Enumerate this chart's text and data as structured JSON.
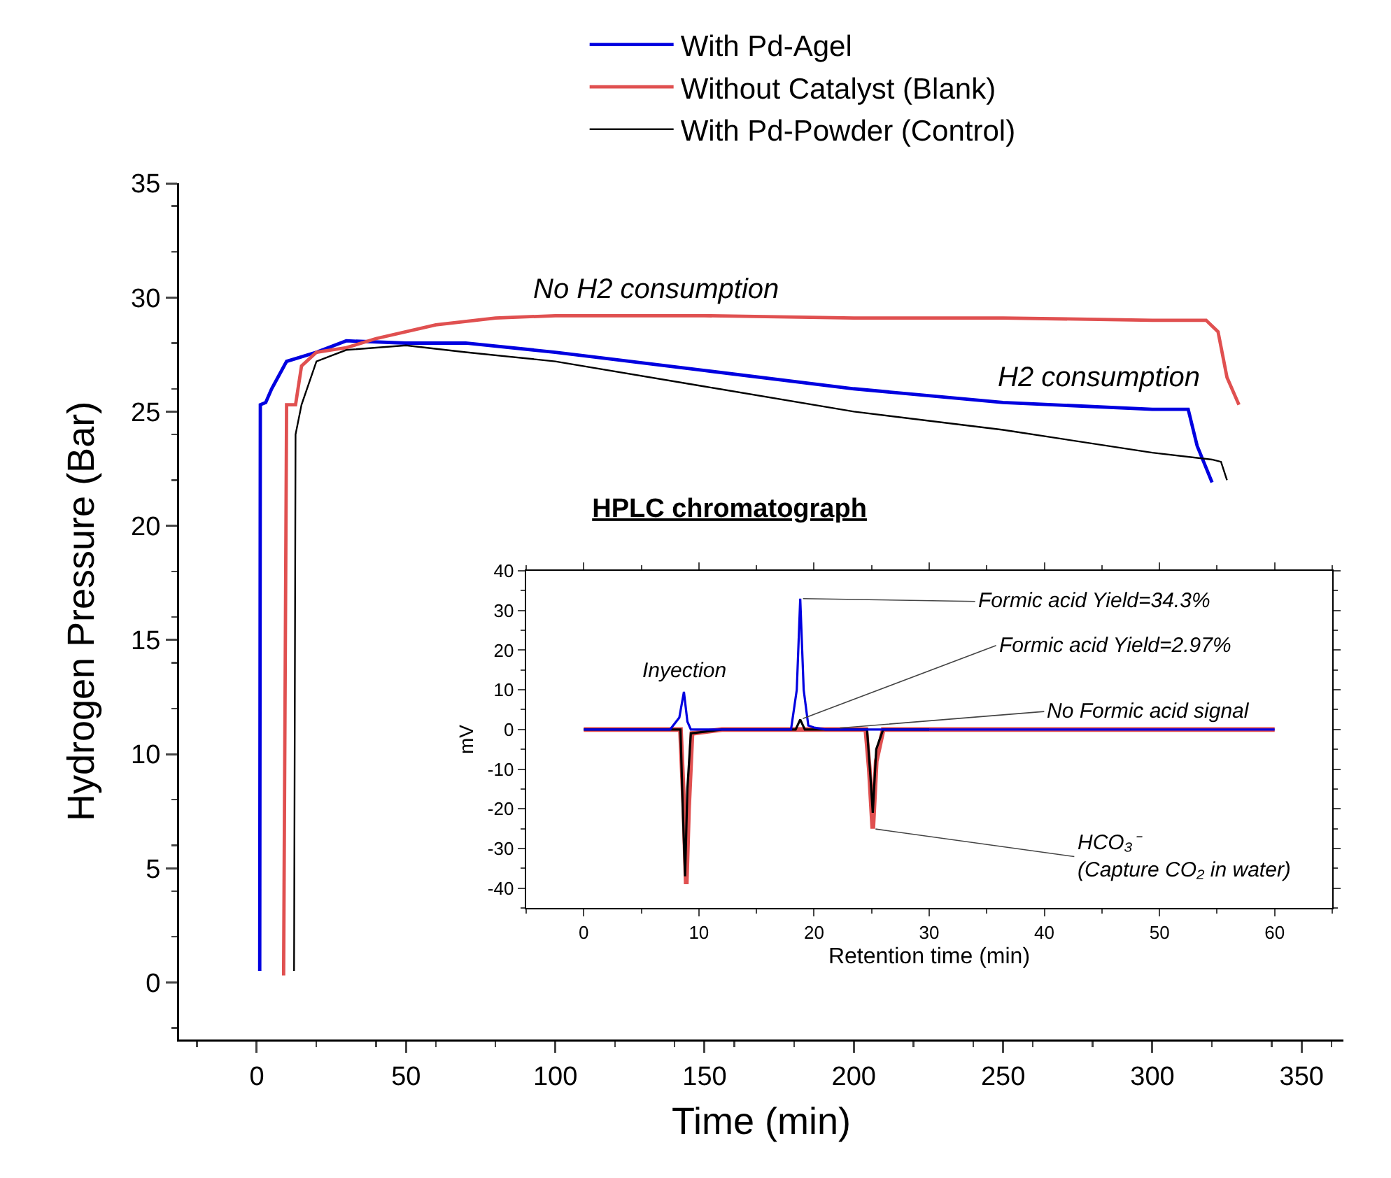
{
  "chart_data": [
    {
      "type": "line",
      "xlabel": "Time (min)",
      "ylabel": "Hydrogen Pressure (Bar)",
      "xlim": [
        -26,
        364
      ],
      "ylim": [
        -2.5,
        35
      ],
      "xticks": [
        0,
        50,
        100,
        150,
        200,
        250,
        300,
        350
      ],
      "yticks": [
        0,
        5,
        10,
        15,
        20,
        25,
        30,
        35
      ],
      "legend": "top",
      "series": [
        {
          "name": "With Pd-Agel",
          "color": "#0000e0",
          "x": [
            1,
            1.2,
            3,
            5,
            10,
            20,
            30,
            50,
            70,
            100,
            150,
            200,
            250,
            300,
            312,
            315,
            320
          ],
          "values": [
            0.5,
            25.3,
            25.4,
            26,
            27.2,
            27.6,
            28.1,
            28,
            28,
            27.6,
            26.8,
            26,
            25.4,
            25.1,
            25.1,
            23.5,
            21.9
          ]
        },
        {
          "name": "Without Catalyst (Blank)",
          "color": "#e05050",
          "x": [
            9,
            10,
            13,
            15,
            20,
            30,
            40,
            60,
            80,
            100,
            150,
            200,
            250,
            300,
            318,
            322,
            325,
            329
          ],
          "values": [
            0.3,
            25.3,
            25.3,
            27,
            27.6,
            27.8,
            28.2,
            28.8,
            29.1,
            29.2,
            29.2,
            29.1,
            29.1,
            29,
            29,
            28.5,
            26.5,
            25.3
          ]
        },
        {
          "name": "With Pd-Powder (Control)",
          "color": "#000000",
          "x": [
            12.5,
            13,
            15,
            20,
            30,
            50,
            70,
            100,
            150,
            200,
            250,
            300,
            320,
            323,
            325
          ],
          "values": [
            0.5,
            24,
            25.3,
            27.2,
            27.7,
            27.9,
            27.6,
            27.2,
            26.1,
            25,
            24.2,
            23.2,
            22.9,
            22.8,
            22
          ]
        }
      ],
      "annotations": [
        {
          "text": "No H2 consumption",
          "x": 134,
          "y": 29.2
        },
        {
          "text": "H2 consumption",
          "x": 282,
          "y": 25.3
        }
      ]
    },
    {
      "type": "line",
      "title": "HPLC chromatograph",
      "xlabel": "Retention time (min)",
      "ylabel": "mV",
      "xlim": [
        -5,
        65
      ],
      "ylim": [
        -45,
        40
      ],
      "xticks": [
        0,
        10,
        20,
        30,
        40,
        50,
        60
      ],
      "yticks": [
        -40,
        -30,
        -20,
        -10,
        0,
        10,
        20,
        30,
        40
      ],
      "series": [
        {
          "color": "#e05050",
          "x": [
            0,
            8.4,
            8.7,
            8.9,
            9.1,
            9.4,
            12,
            24.5,
            24.8,
            25.1,
            25.4,
            26,
            60
          ],
          "values": [
            0,
            0,
            -20,
            -39,
            -20,
            -1,
            0,
            0,
            -10,
            -25,
            -8,
            0,
            0
          ]
        },
        {
          "color": "#000000",
          "x": [
            0,
            8.4,
            8.6,
            8.8,
            9,
            9.3,
            12,
            18.4,
            18.8,
            19.2,
            24.6,
            24.9,
            25.1,
            25.4,
            26,
            30
          ],
          "values": [
            0,
            0,
            -20,
            -37,
            -15,
            -1,
            0,
            0,
            2.5,
            0,
            0,
            -12,
            -21,
            -5,
            0,
            0
          ]
        },
        {
          "color": "#0000e0",
          "x": [
            0,
            7.5,
            8.3,
            8.7,
            9,
            9.3,
            12,
            18,
            18.5,
            18.8,
            19.1,
            19.5,
            20,
            21,
            60
          ],
          "values": [
            0,
            0,
            3,
            9.5,
            2,
            0,
            0,
            0,
            10,
            33,
            10,
            1,
            0.5,
            0,
            0
          ]
        }
      ],
      "annotations": [
        {
          "text": "Inyection",
          "x": 8.7,
          "y": 9.5
        },
        {
          "text": "Formic acid Yield=34.3%",
          "x": 18.8,
          "y": 33
        },
        {
          "text": "Formic acid Yield=2.97%",
          "x": 18.8,
          "y": 2.5
        },
        {
          "text": "No Formic acid signal",
          "x": 22,
          "y": 0.3
        },
        {
          "text": "HCO₃⁻\n(Capture CO₂ in water)",
          "x": 25.1,
          "y": -25
        }
      ]
    }
  ]
}
